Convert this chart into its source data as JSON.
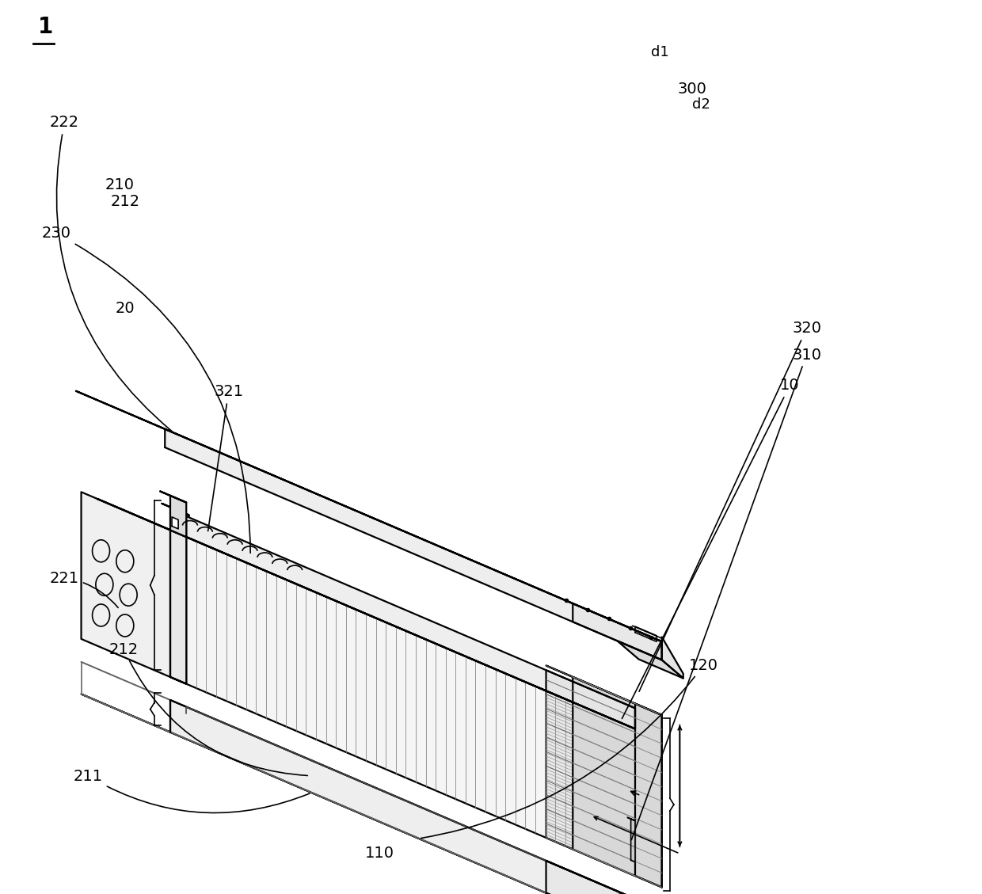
{
  "background_color": "#ffffff",
  "figsize": [
    12.4,
    11.29
  ],
  "dpi": 100,
  "labels": {
    "main": "1",
    "l20": "20",
    "l222": "222",
    "l230": "230",
    "l321": "321",
    "l320": "320",
    "l310": "310",
    "l300": "300",
    "l10": "10",
    "ld2": "d2",
    "ld1": "d1",
    "l221": "221",
    "l212": "212",
    "l210": "210",
    "l211": "211",
    "l120": "120",
    "l110": "110"
  }
}
